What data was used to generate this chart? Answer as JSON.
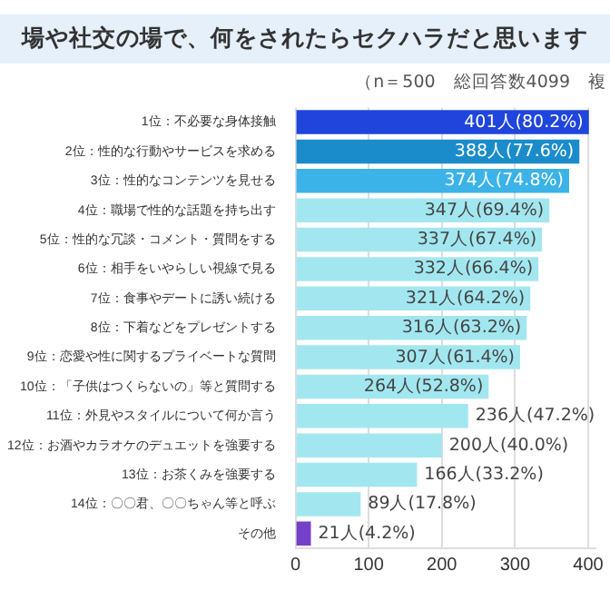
{
  "chart_data": {
    "type": "bar",
    "orientation": "horizontal",
    "title": "場や社交の場で、何をされたらセクハラだと思います",
    "subtitle": "（n＝500　総回答数4099　複",
    "categories": [
      "1位：不必要な身体接触",
      "2位：性的な行動やサービスを求める",
      "3位：性的なコンテンツを見せる",
      "4位：職場で性的な話題を持ち出す",
      "5位：性的な冗談・コメント・質問をする",
      "6位：相手をいやらしい視線で見る",
      "7位：食事やデートに誘い続ける",
      "8位：下着などをプレゼントする",
      "9位：恋愛や性に関するプライベートな質問",
      "10位：「子供はつくらないの」等と質問する",
      "11位：外見やスタイルについて何か言う",
      "12位：お酒やカラオケのデュエットを強要する",
      "13位：お茶くみを強要する",
      "14位：〇〇君、〇〇ちゃん等と呼ぶ",
      "その他"
    ],
    "values": [
      401,
      388,
      374,
      347,
      337,
      332,
      321,
      316,
      307,
      264,
      236,
      200,
      166,
      89,
      21
    ],
    "colors": [
      "#1f45dc",
      "#1b8ccb",
      "#3bb3e8",
      "#a2e7f0",
      "#a2e7f0",
      "#a2e7f0",
      "#a2e7f0",
      "#a2e7f0",
      "#a2e7f0",
      "#a2e7f0",
      "#a2e7f0",
      "#a2e7f0",
      "#a2e7f0",
      "#a2e7f0",
      "#7440c8"
    ],
    "value_labels": [
      "401人(80.2%)",
      "388人(77.6%)",
      "374人(74.8%)",
      "347人(69.4%)",
      "337人(67.4%)",
      "332人(66.4%)",
      "321人(64.2%)",
      "316人(63.2%)",
      "307人(61.4%)",
      "264人(52.8%)",
      "236人(47.2%)",
      "200人(40.0%)",
      "166人(33.2%)",
      "89人(17.8%)",
      "21人(4.2%)"
    ],
    "xlim": [
      0,
      410
    ],
    "xticks": [
      0,
      100,
      200,
      300,
      400
    ],
    "grid": "x",
    "legend": false
  }
}
